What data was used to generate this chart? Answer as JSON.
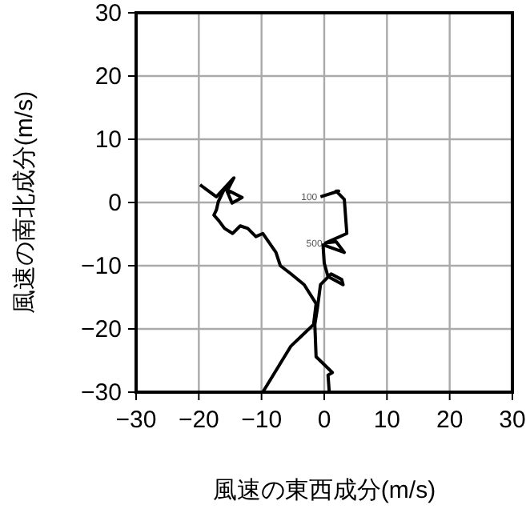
{
  "chart_data": {
    "type": "line",
    "xlabel": "風速の東西成分(m/s)",
    "ylabel": "風速の南北成分(m/s)",
    "xlim": [
      -30,
      30
    ],
    "ylim": [
      -30,
      30
    ],
    "xticks": [
      -30,
      -20,
      -10,
      0,
      10,
      20,
      30
    ],
    "yticks": [
      -30,
      -20,
      -10,
      0,
      10,
      20,
      30
    ],
    "grid": true,
    "series": [
      {
        "color": "#000000",
        "x": [
          -9.8,
          -5.3,
          -1.7,
          -1.3,
          -3.2,
          -5.3,
          -7,
          -7.7,
          -9.8,
          -10.9,
          -12.2,
          -13.4,
          -14.6,
          -15.9,
          -16.8,
          -17.6,
          -17.2,
          -16.9,
          -15.9,
          -13.1,
          -14.7,
          -15.5,
          -14.4,
          -17.2,
          -19.8
        ],
        "values": [
          -30,
          -22.7,
          -19.3,
          -16,
          -13,
          -11.3,
          -10,
          -7.9,
          -4.9,
          -5.4,
          -4.1,
          -3.7,
          -4.9,
          -4.1,
          -2.9,
          -2,
          -1.2,
          0.1,
          2.2,
          0.8,
          -0.1,
          1.8,
          3.9,
          0.9,
          2.8
        ]
      },
      {
        "color": "#000000",
        "x": [
          0.8,
          0.6,
          1.3,
          -1.3,
          -1.5,
          -1.1,
          -0.6,
          1.1,
          2.8,
          3,
          0.6,
          0,
          -0.2,
          3.2,
          1.9,
          0.2,
          3.6,
          3.2,
          1.9,
          2.3,
          -0.6
        ],
        "values": [
          -30,
          -27.3,
          -26.9,
          -24.4,
          -19.3,
          -16.8,
          -13,
          -11.3,
          -12.2,
          -13,
          -11.7,
          -9.6,
          -6.7,
          -7.9,
          -6.2,
          -6.4,
          -4.9,
          0.5,
          1.8,
          1.8,
          0.9
        ]
      }
    ],
    "annotations": [
      {
        "text": "100",
        "x": -0.6,
        "y": 0.9
      },
      {
        "text": "500",
        "x": 0.2,
        "y": -6.4
      }
    ]
  }
}
